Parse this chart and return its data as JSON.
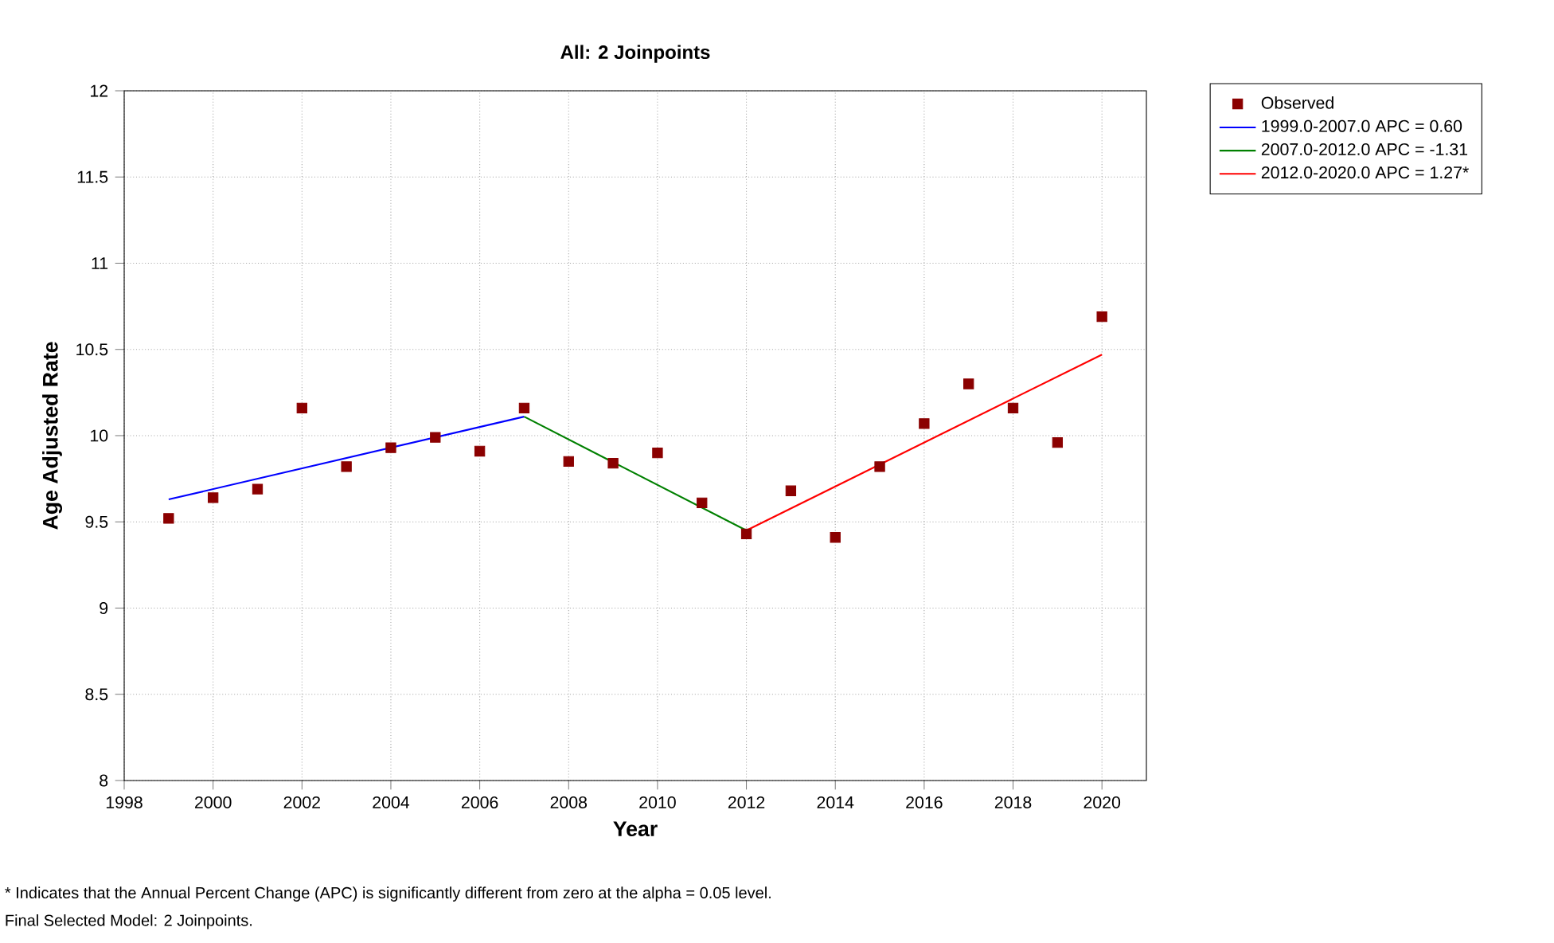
{
  "chart_data": {
    "type": "scatter",
    "title": "All: 2 Joinpoints",
    "xlabel": "Year",
    "ylabel": "Age Adjusted Rate",
    "xlim": [
      1998,
      2021
    ],
    "xticks": [
      1998,
      2000,
      2002,
      2004,
      2006,
      2008,
      2010,
      2012,
      2014,
      2016,
      2018,
      2020
    ],
    "ylim": [
      8,
      12
    ],
    "yticks": [
      8,
      8.5,
      9,
      9.5,
      10,
      10.5,
      11,
      11.5,
      12
    ],
    "grid": true,
    "legend": "top right",
    "line_style": "solid",
    "series": [
      {
        "name": "Observed",
        "marker": "square",
        "color": "#8b0000",
        "x": [
          1999,
          2000,
          2001,
          2002,
          2003,
          2004,
          2005,
          2006,
          2007,
          2008,
          2009,
          2010,
          2011,
          2012,
          2013,
          2014,
          2015,
          2016,
          2017,
          2018,
          2019,
          2020
        ],
        "values": [
          9.52,
          9.64,
          9.69,
          10.16,
          9.82,
          9.93,
          9.99,
          9.91,
          10.16,
          9.85,
          9.84,
          9.9,
          9.61,
          9.43,
          9.68,
          9.41,
          9.82,
          10.07,
          10.3,
          10.16,
          9.96,
          10.69
        ]
      },
      {
        "name": "1999.0-2007.0 APC  =  0.60",
        "type": "line",
        "marker": "none",
        "color": "#0000ff",
        "x": [
          1999,
          2007
        ],
        "values": [
          9.63,
          10.11
        ]
      },
      {
        "name": "2007.0-2012.0 APC  = -1.31",
        "type": "line",
        "marker": "none",
        "color": "#008000",
        "x": [
          2007,
          2012
        ],
        "values": [
          10.11,
          9.45
        ]
      },
      {
        "name": "2012.0-2020.0 APC  =  1.27*",
        "type": "line",
        "marker": "none",
        "color": "#ff0000",
        "x": [
          2012,
          2020
        ],
        "values": [
          9.45,
          10.47
        ]
      }
    ],
    "annotations": [
      "* Indicates that the Annual Percent Change (APC) is significantly different from zero at the alpha = 0.05 level.",
      "Final Selected Model: 2 Joinpoints."
    ]
  }
}
